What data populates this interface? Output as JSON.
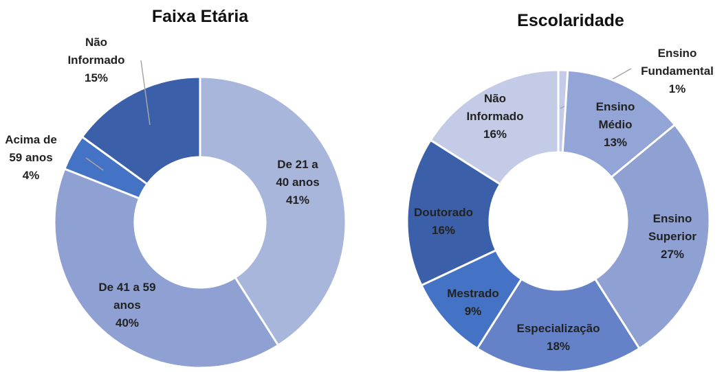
{
  "chart_data": [
    {
      "type": "donut",
      "title": "Faixa Etária",
      "categories": [
        "De 21 a 40 anos",
        "De 41 a 59 anos",
        "Acima de 59 anos",
        "Não Informado"
      ],
      "values": [
        41,
        40,
        4,
        15
      ],
      "value_labels": [
        "41%",
        "40%",
        "4%",
        "15%"
      ],
      "colors": [
        "#a9b6dc",
        "#8fa1d3",
        "#4472c4",
        "#3b5fa9"
      ]
    },
    {
      "type": "donut",
      "title": "Escolaridade",
      "categories": [
        "Ensino Fundamental",
        "Ensino Médio",
        "Ensino Superior",
        "Especialização",
        "Mestrado",
        "Doutorado",
        "Não Informado"
      ],
      "values": [
        1,
        13,
        27,
        18,
        9,
        16,
        16
      ],
      "value_labels": [
        "1%",
        "13%",
        "27%",
        "18%",
        "9%",
        "16%",
        "16%"
      ],
      "colors": [
        "#c3cbe6",
        "#93a4d6",
        "#8fa1d3",
        "#6582c9",
        "#4472c4",
        "#3b5fa9",
        "#c3cbe6"
      ]
    }
  ]
}
